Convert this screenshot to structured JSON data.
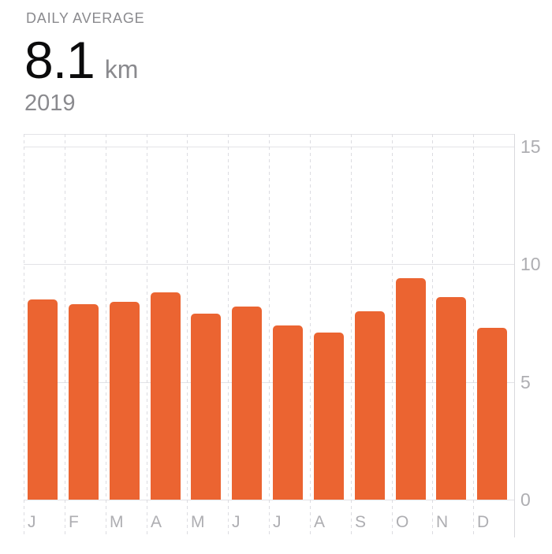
{
  "header": {
    "label": "DAILY AVERAGE",
    "value": "8.1",
    "unit": "km",
    "period": "2019"
  },
  "chart_data": {
    "type": "bar",
    "categories": [
      "J",
      "F",
      "M",
      "A",
      "M",
      "J",
      "J",
      "A",
      "S",
      "O",
      "N",
      "D"
    ],
    "values": [
      8.5,
      8.3,
      8.4,
      8.8,
      7.9,
      8.2,
      7.4,
      7.1,
      8.0,
      9.4,
      8.6,
      7.3
    ],
    "yticks": [
      0,
      5,
      10,
      15
    ],
    "ylim": [
      0,
      15
    ],
    "xlabel": "",
    "ylabel": "",
    "legend": "none",
    "grid": "horizontal-solid-and-vertical-dashed",
    "y_axis_side": "right",
    "bar_color": "#eb6431"
  },
  "colors": {
    "bar": "#eb6431",
    "value_text": "#0b0b0c",
    "secondary_text": "#8a8a8e",
    "axis_text": "#aeaeb2",
    "gridline": "#e3e3e7",
    "axis_line": "#d9d9dd",
    "background": "#ffffff"
  }
}
